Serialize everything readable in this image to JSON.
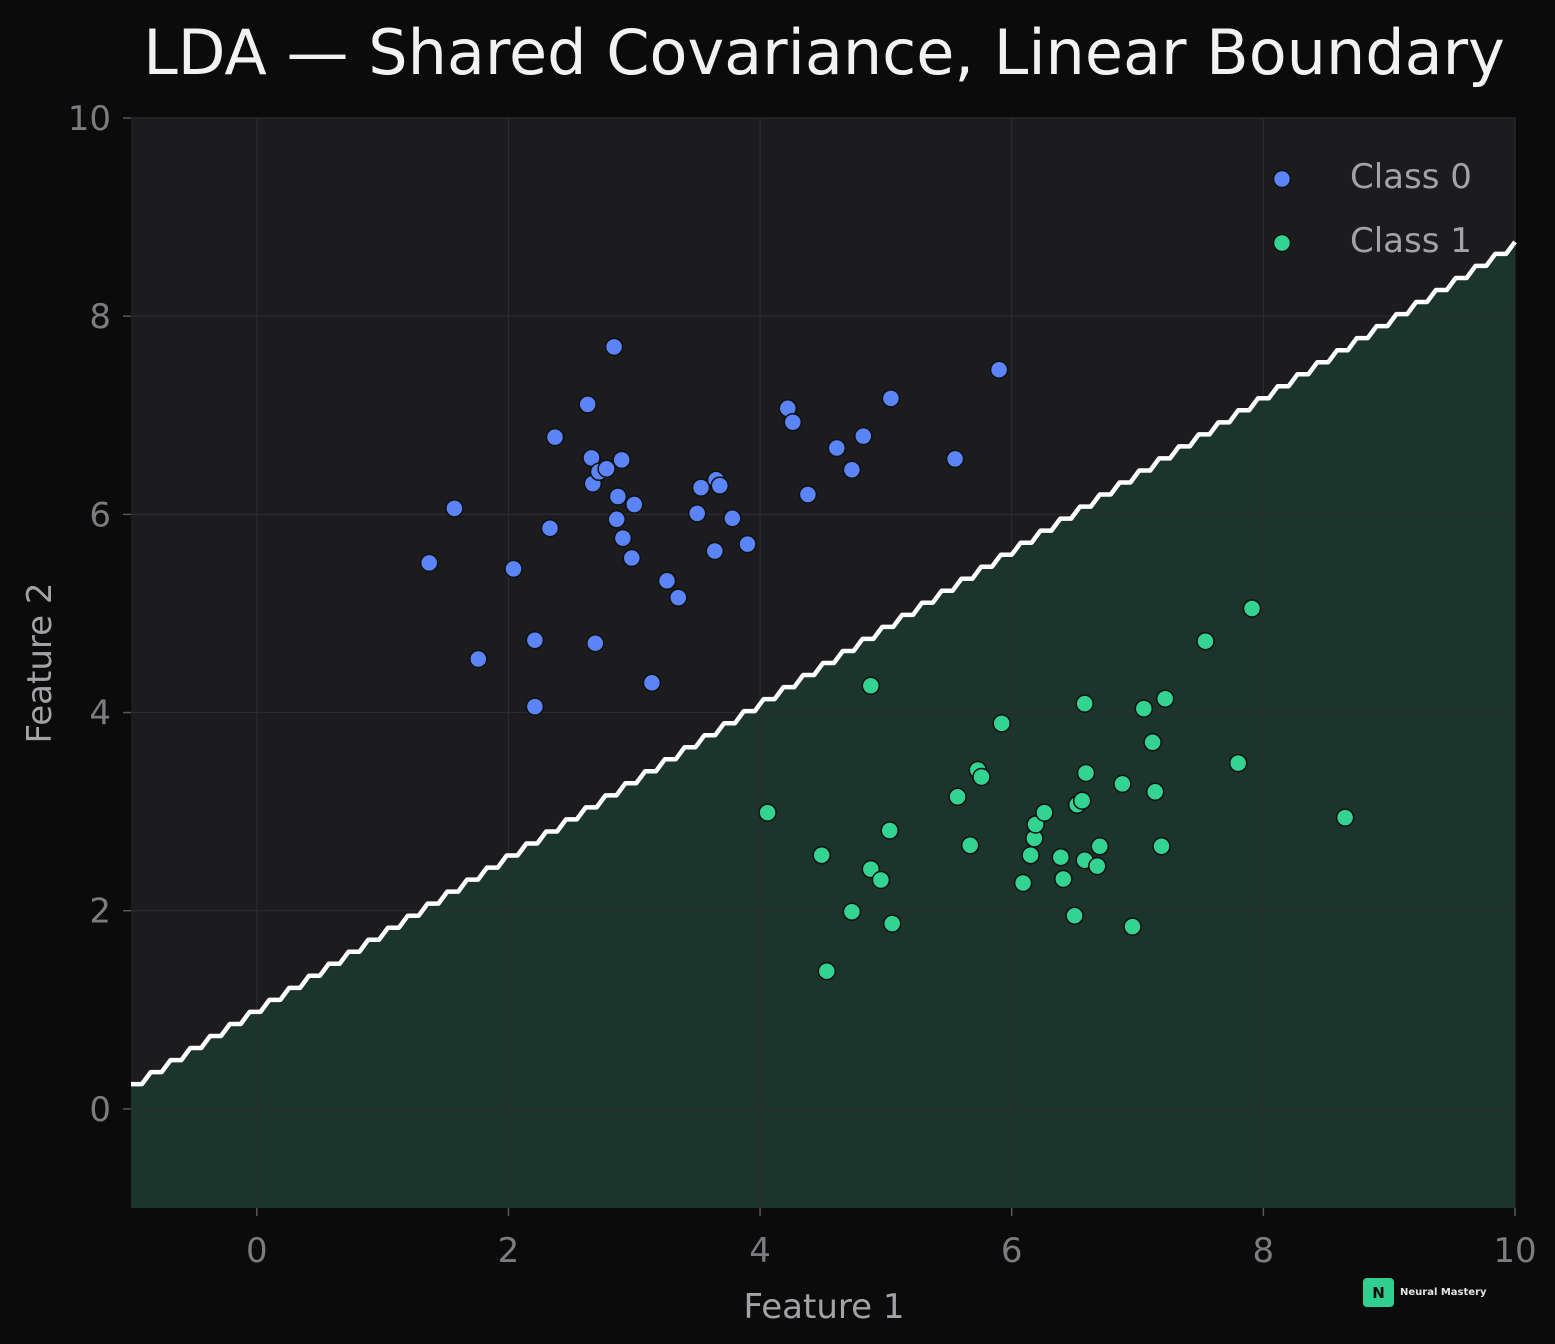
{
  "title": "LDA — Shared Covariance, Linear Boundary",
  "watermark": {
    "badge": "N",
    "text": "Neural Mastery"
  },
  "colors": {
    "background": "#0b0b0b",
    "plot_bg": "#1c1c1f",
    "region_class1": "#1b352c",
    "class0": "#5b84f7",
    "class1": "#33d391",
    "boundary": "#ffffff",
    "brand": "#2ecf8f"
  },
  "chart_data": {
    "type": "scatter",
    "title": "LDA — Shared Covariance, Linear Boundary",
    "xlabel": "Feature 1",
    "ylabel": "Feature 2",
    "xlim": [
      -1,
      10
    ],
    "ylim": [
      -1,
      10
    ],
    "xticks": [
      0,
      2,
      4,
      6,
      8,
      10
    ],
    "yticks": [
      0,
      2,
      4,
      6,
      8,
      10
    ],
    "grid": true,
    "legend": {
      "position": "top-right",
      "entries": [
        "Class 0",
        "Class 1"
      ]
    },
    "decision_boundary": {
      "type": "line",
      "points": [
        [
          -1,
          0.25
        ],
        [
          10,
          8.75
        ]
      ],
      "lower_region": "Class 1"
    },
    "series": [
      {
        "name": "Class 0",
        "points": [
          [
            1.37,
            5.51
          ],
          [
            1.57,
            6.06
          ],
          [
            1.76,
            4.54
          ],
          [
            2.04,
            5.45
          ],
          [
            2.21,
            4.73
          ],
          [
            2.21,
            4.06
          ],
          [
            2.33,
            5.86
          ],
          [
            2.37,
            6.78
          ],
          [
            2.63,
            7.11
          ],
          [
            2.66,
            6.57
          ],
          [
            2.67,
            6.31
          ],
          [
            2.69,
            4.7
          ],
          [
            2.72,
            6.43
          ],
          [
            2.78,
            6.46
          ],
          [
            2.84,
            7.69
          ],
          [
            2.86,
            5.95
          ],
          [
            2.87,
            6.18
          ],
          [
            2.9,
            6.55
          ],
          [
            2.91,
            5.76
          ],
          [
            2.98,
            5.56
          ],
          [
            3.0,
            6.1
          ],
          [
            3.14,
            4.3
          ],
          [
            3.26,
            5.33
          ],
          [
            3.35,
            5.16
          ],
          [
            3.5,
            6.01
          ],
          [
            3.53,
            6.27
          ],
          [
            3.64,
            5.63
          ],
          [
            3.65,
            6.35
          ],
          [
            3.68,
            6.29
          ],
          [
            3.78,
            5.96
          ],
          [
            3.9,
            5.7
          ],
          [
            4.22,
            7.07
          ],
          [
            4.26,
            6.93
          ],
          [
            4.38,
            6.2
          ],
          [
            4.61,
            6.67
          ],
          [
            4.73,
            6.45
          ],
          [
            4.82,
            6.79
          ],
          [
            5.04,
            7.17
          ],
          [
            5.55,
            6.56
          ],
          [
            5.9,
            7.46
          ]
        ]
      },
      {
        "name": "Class 1",
        "points": [
          [
            4.06,
            2.99
          ],
          [
            4.49,
            2.56
          ],
          [
            4.53,
            1.39
          ],
          [
            4.73,
            1.99
          ],
          [
            4.88,
            2.42
          ],
          [
            4.88,
            4.27
          ],
          [
            4.96,
            2.31
          ],
          [
            5.03,
            2.81
          ],
          [
            5.05,
            1.87
          ],
          [
            5.57,
            3.15
          ],
          [
            5.67,
            2.66
          ],
          [
            5.73,
            3.42
          ],
          [
            5.76,
            3.35
          ],
          [
            5.92,
            3.89
          ],
          [
            6.09,
            2.28
          ],
          [
            6.15,
            2.56
          ],
          [
            6.18,
            2.73
          ],
          [
            6.19,
            2.87
          ],
          [
            6.26,
            2.99
          ],
          [
            6.39,
            2.54
          ],
          [
            6.41,
            2.32
          ],
          [
            6.5,
            1.95
          ],
          [
            6.52,
            3.07
          ],
          [
            6.56,
            3.11
          ],
          [
            6.58,
            2.51
          ],
          [
            6.58,
            4.09
          ],
          [
            6.59,
            3.39
          ],
          [
            6.68,
            2.45
          ],
          [
            6.7,
            2.65
          ],
          [
            6.88,
            3.28
          ],
          [
            6.96,
            1.84
          ],
          [
            7.05,
            4.04
          ],
          [
            7.12,
            3.7
          ],
          [
            7.14,
            3.2
          ],
          [
            7.19,
            2.65
          ],
          [
            7.22,
            4.14
          ],
          [
            7.54,
            4.72
          ],
          [
            7.8,
            3.49
          ],
          [
            7.91,
            5.05
          ],
          [
            8.65,
            2.94
          ]
        ]
      }
    ]
  }
}
